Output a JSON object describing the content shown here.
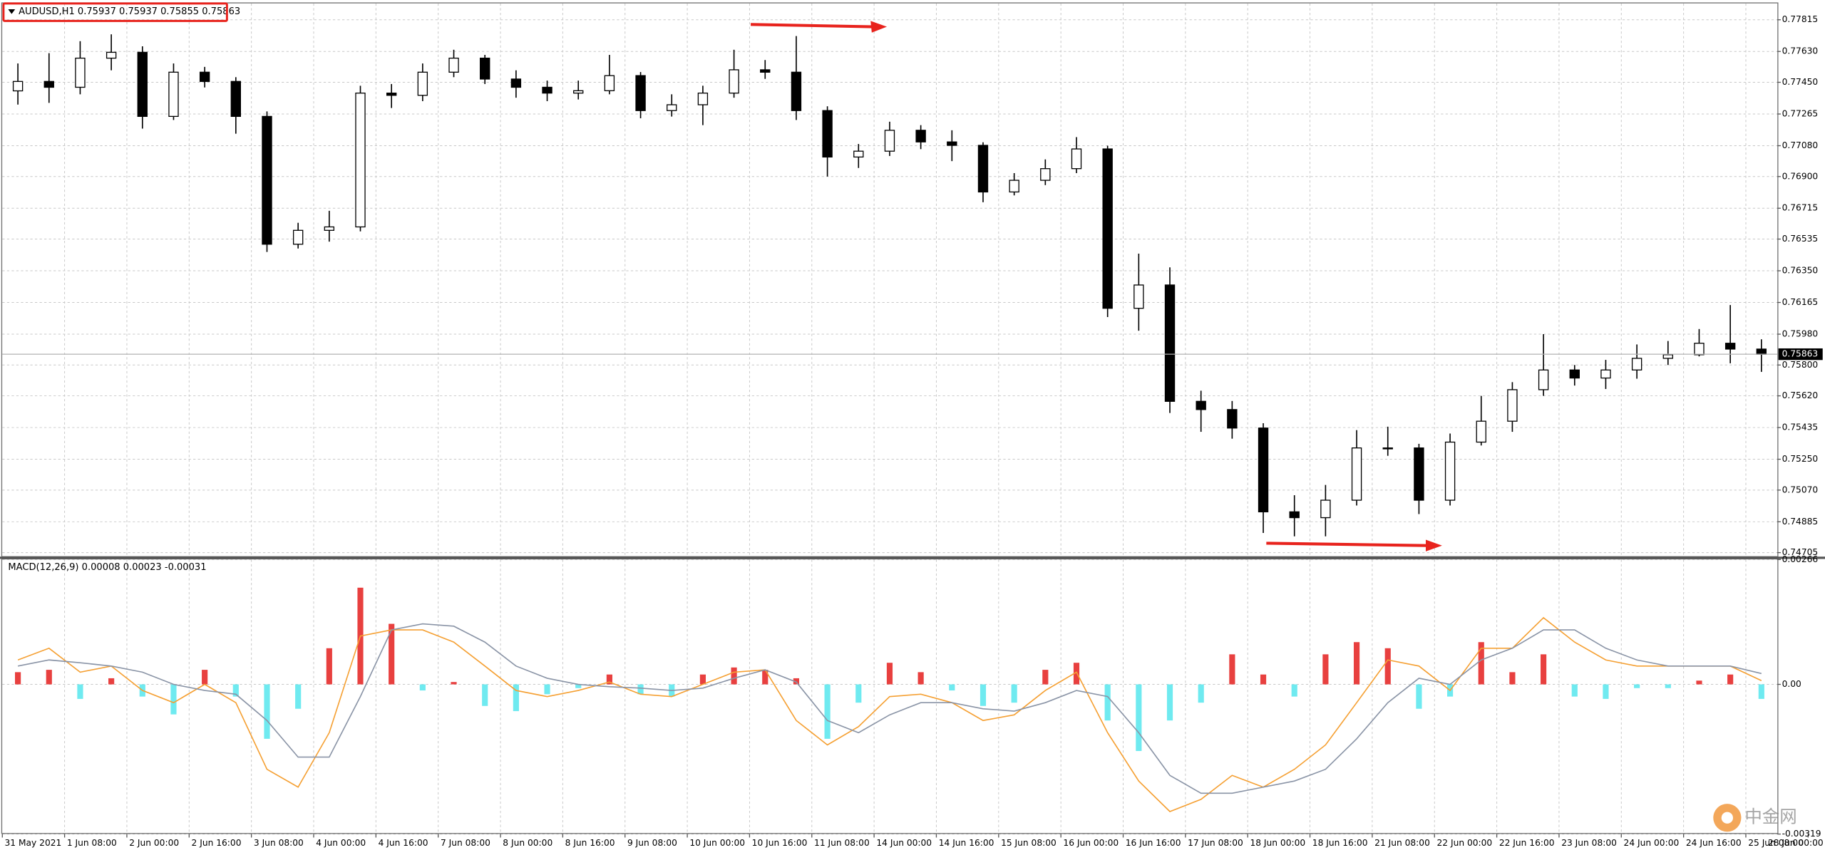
{
  "chart_data": [
    {
      "type": "candlestick",
      "title": "AUDUSD,H1 0.75937 0.75937 0.75855 0.75863",
      "color": "#000000",
      "grid": true,
      "ylim": [
        0.74685,
        0.7791
      ],
      "yticks": [
        0.77815,
        {
          "value": 0.7763,
          "label": "0.77630"
        },
        {
          "value": 0.7745,
          "label": "0.77450"
        },
        0.77265,
        {
          "value": 0.7708,
          "label": "0.77080"
        },
        {
          "value": 0.769,
          "label": "0.76900"
        },
        0.76715,
        0.76535,
        {
          "value": 0.7635,
          "label": "0.76350"
        },
        0.76165,
        {
          "value": 0.7598,
          "label": "0.75980"
        },
        {
          "value": 0.758,
          "label": "0.75800"
        },
        {
          "value": 0.7562,
          "label": "0.75620"
        },
        0.75435,
        {
          "value": 0.7525,
          "label": "0.75250"
        },
        {
          "value": 0.7507,
          "label": "0.75070"
        },
        0.74885,
        0.74705
      ],
      "current_price": 0.75863,
      "x_labels": [
        "31 May 2021",
        "1 Jun 08:00",
        "2 Jun 00:00",
        "2 Jun 16:00",
        "3 Jun 08:00",
        "4 Jun 00:00",
        "4 Jun 16:00",
        "7 Jun 08:00",
        "8 Jun 00:00",
        "8 Jun 16:00",
        "9 Jun 08:00",
        "10 Jun 00:00",
        "10 Jun 16:00",
        "11 Jun 08:00",
        "14 Jun 00:00",
        "14 Jun 16:00",
        "15 Jun 08:00",
        "16 Jun 00:00",
        "16 Jun 16:00",
        "17 Jun 08:00",
        "18 Jun 00:00",
        "18 Jun 16:00",
        "21 Jun 08:00",
        "22 Jun 00:00",
        "22 Jun 16:00",
        "23 Jun 08:00",
        "24 Jun 00:00",
        "24 Jun 16:00",
        "25 Jun 08:00",
        "28 Jun 00:00"
      ],
      "open": [
        0.774,
        0.77455,
        0.77421,
        0.77591,
        0.77625,
        0.77251,
        0.77509,
        0.77455,
        0.77251,
        0.76505,
        0.76586,
        0.76606,
        0.77387,
        0.77374,
        0.77509,
        0.77591,
        0.77469,
        0.77421,
        0.77387,
        0.77401,
        0.77489,
        0.77285,
        0.77319,
        0.77387,
        0.77523,
        0.77509,
        0.77285,
        0.77014,
        0.77048,
        0.7717,
        0.77102,
        0.77082,
        0.7681,
        0.76878,
        0.76946,
        0.77061,
        0.76131,
        0.76267,
        0.75588,
        0.7554,
        0.75432,
        0.74943,
        0.74909,
        0.75011,
        0.75316,
        0.75316,
        0.75011,
        0.7535,
        0.75472,
        0.75656,
        0.75771,
        0.75724,
        0.75771,
        0.75839,
        0.7586,
        0.75927,
        0.75893
      ],
      "high": [
        0.7756,
        0.7762,
        0.7769,
        0.7773,
        0.7766,
        0.7756,
        0.7754,
        0.7748,
        0.7728,
        0.7663,
        0.767,
        0.7743,
        0.7744,
        0.7756,
        0.7764,
        0.7761,
        0.7752,
        0.7746,
        0.7746,
        0.7761,
        0.7751,
        0.7738,
        0.7743,
        0.7764,
        0.7758,
        0.7772,
        0.7731,
        0.7709,
        0.7722,
        0.772,
        0.7717,
        0.771,
        0.7692,
        0.77,
        0.7713,
        0.7708,
        0.7645,
        0.7637,
        0.7565,
        0.7559,
        0.7546,
        0.7504,
        0.751,
        0.7542,
        0.7544,
        0.7534,
        0.754,
        0.7562,
        0.757,
        0.7598,
        0.758,
        0.7583,
        0.7592,
        0.7594,
        0.7601,
        0.7615,
        0.7595
      ],
      "low": [
        0.7732,
        0.7733,
        0.7738,
        0.7752,
        0.7718,
        0.7723,
        0.7742,
        0.7715,
        0.7646,
        0.7648,
        0.7652,
        0.7658,
        0.773,
        0.7734,
        0.7748,
        0.7744,
        0.7736,
        0.7734,
        0.7735,
        0.7738,
        0.7724,
        0.7725,
        0.772,
        0.7736,
        0.7747,
        0.7723,
        0.769,
        0.7695,
        0.7702,
        0.7706,
        0.7699,
        0.7675,
        0.7679,
        0.7685,
        0.7692,
        0.7608,
        0.76,
        0.7552,
        0.7541,
        0.7537,
        0.7482,
        0.748,
        0.748,
        0.7498,
        0.7527,
        0.7493,
        0.7498,
        0.7533,
        0.7541,
        0.7562,
        0.7568,
        0.7566,
        0.7572,
        0.758,
        0.7585,
        0.7581,
        0.7576
      ],
      "close": [
        0.77455,
        0.77421,
        0.77591,
        0.77625,
        0.77251,
        0.77509,
        0.77455,
        0.77251,
        0.76505,
        0.76586,
        0.76606,
        0.77387,
        0.77374,
        0.77509,
        0.77591,
        0.77469,
        0.77421,
        0.77387,
        0.77401,
        0.77489,
        0.77285,
        0.77319,
        0.77387,
        0.77523,
        0.77509,
        0.77285,
        0.77014,
        0.77048,
        0.7717,
        0.77102,
        0.77082,
        0.7681,
        0.76878,
        0.76946,
        0.77061,
        0.76131,
        0.76267,
        0.75588,
        0.7554,
        0.75432,
        0.74943,
        0.74909,
        0.75011,
        0.75316,
        0.75316,
        0.75011,
        0.7535,
        0.75472,
        0.75656,
        0.75771,
        0.75724,
        0.75771,
        0.75839,
        0.7586,
        0.75927,
        0.75893,
        0.75863
      ]
    },
    {
      "type": "macd",
      "title": "MACD(12,26,9) 0.00008 0.00023 -0.00031",
      "grid": true,
      "ylim": [
        -0.00319,
        0.00266
      ],
      "yticks": [
        0.00266,
        {
          "value": 0,
          "label": "0.00"
        },
        -0.00319
      ],
      "positive_color": "#e8403f",
      "negative_color": "#6feaf0",
      "values": [
        0.00026,
        0.00031,
        -0.00031,
        0.00013,
        -0.00026,
        -0.00064,
        0.00031,
        -0.00026,
        -0.00116,
        -0.00052,
        0.00077,
        0.00206,
        0.00129,
        -0.00013,
        5e-05,
        -0.00046,
        -0.00057,
        -0.00021,
        -8e-05,
        0.00021,
        -0.00021,
        -0.00026,
        0.00021,
        0.00036,
        0.00031,
        0.00013,
        -0.00116,
        -0.00039,
        0.00046,
        0.00026,
        -0.00013,
        -0.00046,
        -0.00039,
        0.00031,
        0.00046,
        -0.00077,
        -0.00142,
        -0.00077,
        -0.00039,
        0.00064,
        0.00021,
        -0.00026,
        0.00064,
        0.0009,
        0.00077,
        -0.00052,
        -0.00026,
        0.0009,
        0.00026,
        0.00064,
        -0.00026,
        -0.00031,
        -8e-05,
        -8e-05,
        8e-05,
        0.00021,
        -0.00031
      ],
      "series": [
        {
          "color": "#f5a033",
          "values": [
            0.00052,
            0.00077,
            0.00026,
            0.00039,
            -0.00013,
            -0.00039,
            0,
            -0.00039,
            -0.00181,
            -0.00219,
            -0.00103,
            0.00103,
            0.00116,
            0.00116,
            0.0009,
            0.00039,
            -0.00013,
            -0.00026,
            -0.00013,
            5e-05,
            -0.00021,
            -0.00026,
            0,
            0.00026,
            0.00031,
            -0.00077,
            -0.00129,
            -0.0009,
            -0.00026,
            -0.00021,
            -0.00039,
            -0.00077,
            -0.00065,
            -0.00013,
            0.00026,
            -0.00103,
            -0.00206,
            -0.00271,
            -0.00245,
            -0.00194,
            -0.00219,
            -0.00181,
            -0.00129,
            -0.00039,
            0.00052,
            0.00039,
            -0.00013,
            0.00077,
            0.00077,
            0.00142,
            0.0009,
            0.00052,
            0.00039,
            0.00039,
            0.00039,
            0.00039,
            8e-05
          ]
        },
        {
          "color": "#8a94a6",
          "values": [
            0.00039,
            0.00052,
            0.00046,
            0.00039,
            0.00026,
            0,
            -0.00013,
            -0.00021,
            -0.00077,
            -0.00155,
            -0.00155,
            -0.00026,
            0.00116,
            0.00129,
            0.00124,
            0.0009,
            0.00039,
            0.00013,
            0,
            -5e-05,
            -8e-05,
            -0.00013,
            -8e-05,
            0.00013,
            0.00031,
            5e-05,
            -0.00077,
            -0.00103,
            -0.00065,
            -0.00039,
            -0.00039,
            -0.00052,
            -0.00057,
            -0.00039,
            -0.00013,
            -0.00026,
            -0.00103,
            -0.00194,
            -0.00232,
            -0.00232,
            -0.00219,
            -0.00206,
            -0.00181,
            -0.00116,
            -0.00039,
            0.00013,
            0,
            0.00052,
            0.00077,
            0.00116,
            0.00116,
            0.00077,
            0.00052,
            0.00039,
            0.00039,
            0.00039,
            0.00023
          ]
        }
      ]
    }
  ],
  "watermark": "中金网"
}
